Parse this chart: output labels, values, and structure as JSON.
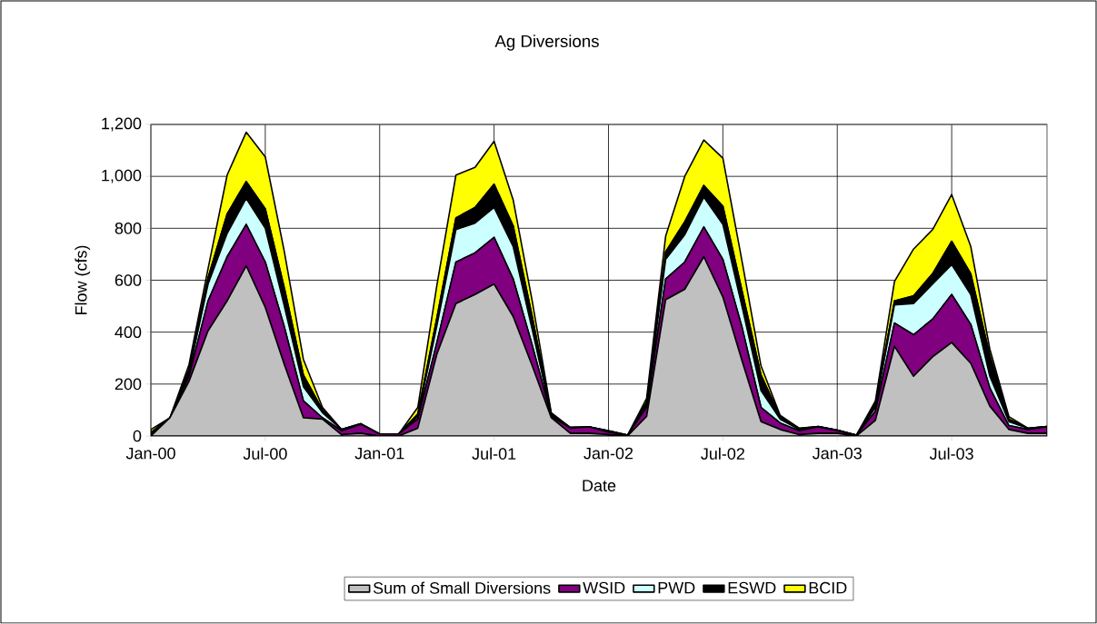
{
  "chart_data": {
    "type": "area",
    "stacked": true,
    "title": "Ag Diversions",
    "xlabel": "Date",
    "ylabel": "Flow (cfs)",
    "x": [
      "2000-01",
      "2000-02",
      "2000-03",
      "2000-04",
      "2000-05",
      "2000-06",
      "2000-07",
      "2000-08",
      "2000-09",
      "2000-10",
      "2000-11",
      "2000-12",
      "2001-01",
      "2001-02",
      "2001-03",
      "2001-04",
      "2001-05",
      "2001-06",
      "2001-07",
      "2001-08",
      "2001-09",
      "2001-10",
      "2001-11",
      "2001-12",
      "2002-01",
      "2002-02",
      "2002-03",
      "2002-04",
      "2002-05",
      "2002-06",
      "2002-07",
      "2002-08",
      "2002-09",
      "2002-10",
      "2002-11",
      "2002-12",
      "2003-01",
      "2003-02",
      "2003-03",
      "2003-04",
      "2003-05",
      "2003-06",
      "2003-07",
      "2003-08",
      "2003-09",
      "2003-10",
      "2003-11",
      "2003-12"
    ],
    "series": [
      {
        "name": "Sum of Small Diversions",
        "color": "#c0c0c0",
        "values": [
          0,
          70,
          210,
          405,
          520,
          655,
          495,
          275,
          70,
          65,
          5,
          10,
          0,
          0,
          30,
          315,
          510,
          545,
          585,
          460,
          270,
          70,
          10,
          10,
          5,
          0,
          75,
          525,
          565,
          690,
          535,
          290,
          55,
          25,
          5,
          10,
          10,
          0,
          60,
          345,
          230,
          305,
          360,
          280,
          115,
          25,
          10,
          10
        ]
      },
      {
        "name": "WSID",
        "color": "#800080",
        "values": [
          5,
          0,
          20,
          115,
          170,
          160,
          175,
          145,
          65,
          5,
          15,
          35,
          8,
          8,
          35,
          45,
          160,
          160,
          180,
          145,
          80,
          5,
          20,
          25,
          10,
          3,
          35,
          80,
          105,
          115,
          145,
          130,
          55,
          25,
          15,
          25,
          10,
          3,
          35,
          90,
          160,
          145,
          185,
          150,
          70,
          15,
          15,
          25
        ]
      },
      {
        "name": "PWD",
        "color": "#ccffff",
        "values": [
          5,
          0,
          15,
          65,
          90,
          100,
          130,
          80,
          55,
          20,
          5,
          2,
          0,
          0,
          10,
          65,
          125,
          115,
          115,
          125,
          60,
          5,
          3,
          0,
          5,
          0,
          10,
          75,
          105,
          115,
          135,
          80,
          65,
          15,
          5,
          2,
          3,
          0,
          15,
          70,
          120,
          135,
          115,
          115,
          45,
          15,
          5,
          2
        ]
      },
      {
        "name": "ESWD",
        "color": "#000000",
        "values": [
          3,
          0,
          10,
          25,
          75,
          65,
          75,
          70,
          45,
          10,
          0,
          0,
          0,
          0,
          10,
          30,
          45,
          60,
          90,
          80,
          50,
          5,
          0,
          0,
          0,
          0,
          10,
          30,
          50,
          45,
          70,
          60,
          60,
          10,
          5,
          0,
          0,
          0,
          15,
          15,
          30,
          40,
          90,
          80,
          80,
          10,
          0,
          0
        ]
      },
      {
        "name": "BCID",
        "color": "#ffff00",
        "values": [
          12,
          0,
          20,
          35,
          150,
          190,
          200,
          140,
          60,
          10,
          0,
          0,
          0,
          0,
          25,
          125,
          165,
          155,
          165,
          100,
          60,
          5,
          0,
          0,
          0,
          0,
          15,
          60,
          175,
          175,
          185,
          115,
          35,
          5,
          0,
          0,
          0,
          0,
          10,
          75,
          180,
          170,
          180,
          105,
          25,
          10,
          0,
          0
        ]
      }
    ],
    "xlim": [
      "2000-01",
      "2003-12"
    ],
    "xticks": [
      {
        "value": "2000-01",
        "label": "Jan-00"
      },
      {
        "value": "2000-07",
        "label": "Jul-00"
      },
      {
        "value": "2001-01",
        "label": "Jan-01"
      },
      {
        "value": "2001-07",
        "label": "Jul-01"
      },
      {
        "value": "2002-01",
        "label": "Jan-02"
      },
      {
        "value": "2002-07",
        "label": "Jul-02"
      },
      {
        "value": "2003-01",
        "label": "Jan-03"
      },
      {
        "value": "2003-07",
        "label": "Jul-03"
      }
    ],
    "ylim": [
      0,
      1200
    ],
    "yticks": [
      0,
      200,
      400,
      600,
      800,
      {
        "value": 1000,
        "label": "1,000"
      },
      {
        "value": 1200,
        "label": "1,200"
      }
    ],
    "grid": true,
    "legend": "bottom"
  }
}
